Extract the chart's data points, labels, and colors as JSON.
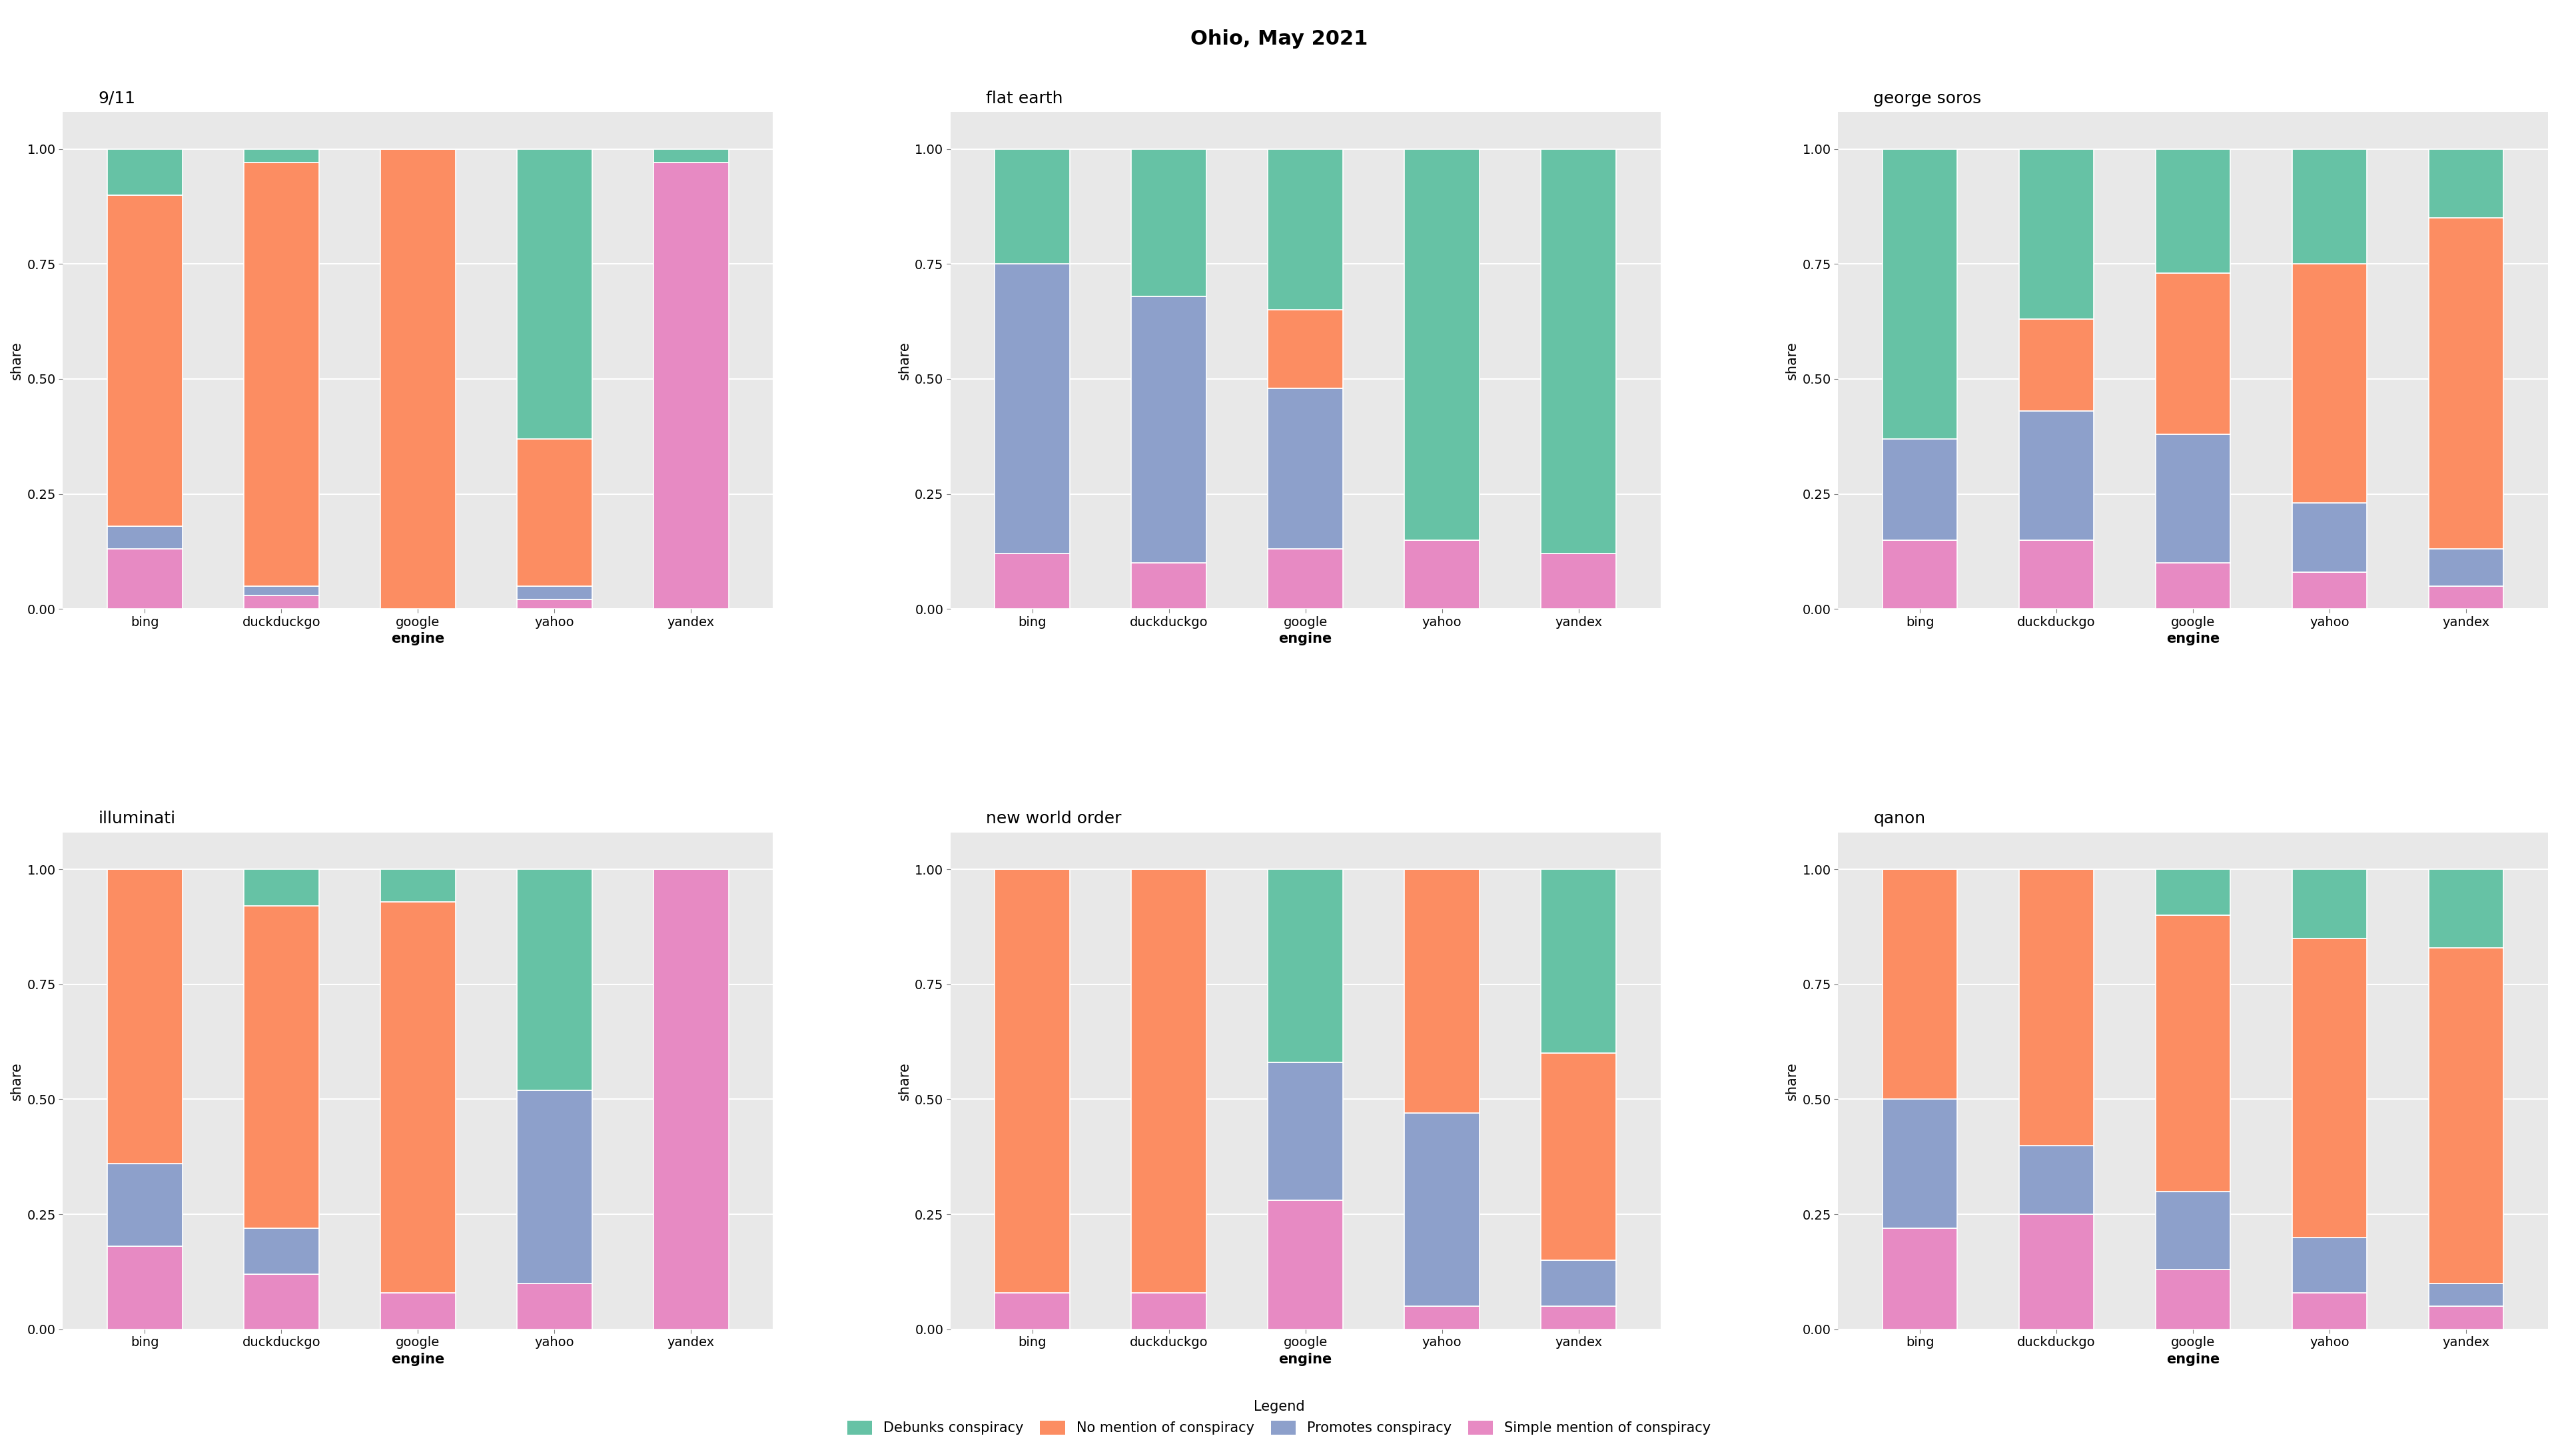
{
  "title": "Ohio, May 2021",
  "engines": [
    "bing",
    "duckduckgo",
    "google",
    "yahoo",
    "yandex"
  ],
  "categories": [
    "9/11",
    "flat earth",
    "george soros",
    "illuminati",
    "new world order",
    "qanon"
  ],
  "stances": [
    "Debunks conspiracy",
    "No mention of conspiracy",
    "Promotes conspiracy",
    "Simple mention of conspiracy"
  ],
  "colors": {
    "Debunks conspiracy": "#66c2a5",
    "No mention of conspiracy": "#fc8d62",
    "Promotes conspiracy": "#8da0cb",
    "Simple mention of conspiracy": "#e78ac3"
  },
  "data": {
    "9/11": {
      "bing": {
        "Simple mention of conspiracy": 0.13,
        "Promotes conspiracy": 0.05,
        "No mention of conspiracy": 0.72,
        "Debunks conspiracy": 0.1
      },
      "duckduckgo": {
        "Simple mention of conspiracy": 0.03,
        "Promotes conspiracy": 0.02,
        "No mention of conspiracy": 0.92,
        "Debunks conspiracy": 0.03
      },
      "google": {
        "Simple mention of conspiracy": 0.0,
        "Promotes conspiracy": 0.0,
        "No mention of conspiracy": 1.0,
        "Debunks conspiracy": 0.0
      },
      "yahoo": {
        "Simple mention of conspiracy": 0.02,
        "Promotes conspiracy": 0.03,
        "No mention of conspiracy": 0.32,
        "Debunks conspiracy": 0.63
      },
      "yandex": {
        "Simple mention of conspiracy": 0.97,
        "Promotes conspiracy": 0.0,
        "No mention of conspiracy": 0.0,
        "Debunks conspiracy": 0.03
      }
    },
    "flat earth": {
      "bing": {
        "Simple mention of conspiracy": 0.12,
        "Promotes conspiracy": 0.63,
        "No mention of conspiracy": 0.0,
        "Debunks conspiracy": 0.25
      },
      "duckduckgo": {
        "Simple mention of conspiracy": 0.1,
        "Promotes conspiracy": 0.58,
        "No mention of conspiracy": 0.0,
        "Debunks conspiracy": 0.32
      },
      "google": {
        "Simple mention of conspiracy": 0.13,
        "Promotes conspiracy": 0.35,
        "No mention of conspiracy": 0.17,
        "Debunks conspiracy": 0.35
      },
      "yahoo": {
        "Simple mention of conspiracy": 0.15,
        "Promotes conspiracy": 0.0,
        "No mention of conspiracy": 0.0,
        "Debunks conspiracy": 0.85
      },
      "yandex": {
        "Simple mention of conspiracy": 0.12,
        "Promotes conspiracy": 0.0,
        "No mention of conspiracy": 0.0,
        "Debunks conspiracy": 0.88
      }
    },
    "george soros": {
      "bing": {
        "Simple mention of conspiracy": 0.15,
        "Promotes conspiracy": 0.22,
        "No mention of conspiracy": 0.0,
        "Debunks conspiracy": 0.63
      },
      "duckduckgo": {
        "Simple mention of conspiracy": 0.15,
        "Promotes conspiracy": 0.28,
        "No mention of conspiracy": 0.2,
        "Debunks conspiracy": 0.37
      },
      "google": {
        "Simple mention of conspiracy": 0.1,
        "Promotes conspiracy": 0.28,
        "No mention of conspiracy": 0.35,
        "Debunks conspiracy": 0.27
      },
      "yahoo": {
        "Simple mention of conspiracy": 0.08,
        "Promotes conspiracy": 0.15,
        "No mention of conspiracy": 0.52,
        "Debunks conspiracy": 0.25
      },
      "yandex": {
        "Simple mention of conspiracy": 0.05,
        "Promotes conspiracy": 0.08,
        "No mention of conspiracy": 0.72,
        "Debunks conspiracy": 0.15
      }
    },
    "illuminati": {
      "bing": {
        "Simple mention of conspiracy": 0.18,
        "Promotes conspiracy": 0.18,
        "No mention of conspiracy": 0.64,
        "Debunks conspiracy": 0.0
      },
      "duckduckgo": {
        "Simple mention of conspiracy": 0.12,
        "Promotes conspiracy": 0.1,
        "No mention of conspiracy": 0.7,
        "Debunks conspiracy": 0.08
      },
      "google": {
        "Simple mention of conspiracy": 0.08,
        "Promotes conspiracy": 0.0,
        "No mention of conspiracy": 0.85,
        "Debunks conspiracy": 0.07
      },
      "yahoo": {
        "Simple mention of conspiracy": 0.1,
        "Promotes conspiracy": 0.42,
        "No mention of conspiracy": 0.0,
        "Debunks conspiracy": 0.48
      },
      "yandex": {
        "Simple mention of conspiracy": 1.0,
        "Promotes conspiracy": 0.0,
        "No mention of conspiracy": 0.0,
        "Debunks conspiracy": 0.0
      }
    },
    "new world order": {
      "bing": {
        "Simple mention of conspiracy": 0.08,
        "Promotes conspiracy": 0.0,
        "No mention of conspiracy": 0.92,
        "Debunks conspiracy": 0.0
      },
      "duckduckgo": {
        "Simple mention of conspiracy": 0.08,
        "Promotes conspiracy": 0.0,
        "No mention of conspiracy": 0.92,
        "Debunks conspiracy": 0.0
      },
      "google": {
        "Simple mention of conspiracy": 0.28,
        "Promotes conspiracy": 0.3,
        "No mention of conspiracy": 0.0,
        "Debunks conspiracy": 0.42
      },
      "yahoo": {
        "Simple mention of conspiracy": 0.05,
        "Promotes conspiracy": 0.42,
        "No mention of conspiracy": 0.53,
        "Debunks conspiracy": 0.0
      },
      "yandex": {
        "Simple mention of conspiracy": 0.05,
        "Promotes conspiracy": 0.1,
        "No mention of conspiracy": 0.45,
        "Debunks conspiracy": 0.4
      }
    },
    "qanon": {
      "bing": {
        "Simple mention of conspiracy": 0.22,
        "Promotes conspiracy": 0.28,
        "No mention of conspiracy": 0.5,
        "Debunks conspiracy": 0.0
      },
      "duckduckgo": {
        "Simple mention of conspiracy": 0.25,
        "Promotes conspiracy": 0.15,
        "No mention of conspiracy": 0.6,
        "Debunks conspiracy": 0.0
      },
      "google": {
        "Simple mention of conspiracy": 0.13,
        "Promotes conspiracy": 0.17,
        "No mention of conspiracy": 0.6,
        "Debunks conspiracy": 0.1
      },
      "yahoo": {
        "Simple mention of conspiracy": 0.08,
        "Promotes conspiracy": 0.12,
        "No mention of conspiracy": 0.65,
        "Debunks conspiracy": 0.15
      },
      "yandex": {
        "Simple mention of conspiracy": 0.05,
        "Promotes conspiracy": 0.05,
        "No mention of conspiracy": 0.73,
        "Debunks conspiracy": 0.17
      }
    }
  },
  "ylabel": "share",
  "xlabel": "engine",
  "plot_bg_color": "#e8e8e8",
  "grid_color": "#ffffff",
  "title_fontsize": 22,
  "subplot_title_fontsize": 18,
  "tick_fontsize": 14,
  "axis_label_fontsize": 15,
  "legend_fontsize": 15
}
